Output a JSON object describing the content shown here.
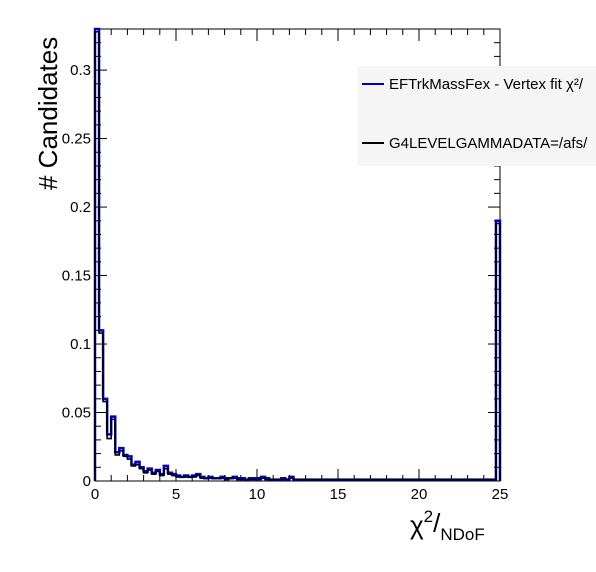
{
  "chart_data": {
    "type": "line",
    "style": "step-histogram",
    "xlabel": {
      "main": "χ",
      "sup": "2",
      "slash": "/",
      "sub": "NDoF"
    },
    "ylabel": "# Candidates",
    "xlim": [
      0,
      25
    ],
    "ylim": [
      0,
      0.33
    ],
    "x_ticks": [
      "0",
      "5",
      "10",
      "15",
      "20",
      "25"
    ],
    "y_ticks": [
      "0",
      "0.05",
      "0.1",
      "0.15",
      "0.2",
      "0.25",
      "0.3"
    ],
    "bin_width": 0.25,
    "grid": false,
    "legend_position": "top-right",
    "series": [
      {
        "name": "EFTrkMassFex - Vertex fit χ²/",
        "color": "#0000cc",
        "values": [
          0.33,
          0.11,
          0.06,
          0.034,
          0.047,
          0.021,
          0.024,
          0.019,
          0.018,
          0.012,
          0.014,
          0.01,
          0.007,
          0.009,
          0.006,
          0.008,
          0.005,
          0.011,
          0.006,
          0.005,
          0.004,
          0.003,
          0.004,
          0.003,
          0.004,
          0.005,
          0.003,
          0.002,
          0.003,
          0.002,
          0.002,
          0.003,
          0.002,
          0.002,
          0.003,
          0.002,
          0.002,
          0.001,
          0.002,
          0.002,
          0.002,
          0.003,
          0.002,
          0.001,
          0.001,
          0.001,
          0.002,
          0.001,
          0.003,
          0.001,
          0.001,
          0.001,
          0.001,
          0.001,
          0.001,
          0.001,
          0.001,
          0.001,
          0.001,
          0.001,
          0.001,
          0.001,
          0.001,
          0.001,
          0.001,
          0.001,
          0.001,
          0.001,
          0.001,
          0.001,
          0.001,
          0.001,
          0.001,
          0.001,
          0.001,
          0.001,
          0.001,
          0.001,
          0.001,
          0.001,
          0.001,
          0.001,
          0.001,
          0.001,
          0.001,
          0.001,
          0.001,
          0.001,
          0.001,
          0.001,
          0.001,
          0.001,
          0.001,
          0.001,
          0.001,
          0.001,
          0.001,
          0.001,
          0.001,
          0.19
        ]
      },
      {
        "name": "G4LEVELGAMMADATA=/afs/",
        "color": "#000000",
        "values": [
          0.328,
          0.108,
          0.058,
          0.031,
          0.045,
          0.019,
          0.022,
          0.018,
          0.016,
          0.011,
          0.012,
          0.009,
          0.006,
          0.008,
          0.005,
          0.007,
          0.004,
          0.009,
          0.005,
          0.004,
          0.003,
          0.003,
          0.003,
          0.003,
          0.003,
          0.004,
          0.002,
          0.002,
          0.002,
          0.002,
          0.002,
          0.002,
          0.001,
          0.002,
          0.002,
          0.001,
          0.001,
          0.001,
          0.001,
          0.001,
          0.001,
          0.002,
          0.001,
          0.001,
          0.001,
          0.001,
          0.001,
          0.001,
          0.002,
          0.001,
          0.001,
          0.001,
          0.001,
          0.001,
          0.001,
          0.001,
          0.001,
          0.001,
          0.001,
          0.001,
          0.001,
          0.001,
          0.001,
          0.001,
          0.001,
          0.001,
          0.001,
          0.001,
          0.001,
          0.001,
          0.001,
          0.001,
          0.001,
          0.001,
          0.001,
          0.001,
          0.001,
          0.001,
          0.001,
          0.001,
          0.001,
          0.001,
          0.001,
          0.001,
          0.001,
          0.001,
          0.001,
          0.001,
          0.001,
          0.001,
          0.001,
          0.001,
          0.001,
          0.001,
          0.001,
          0.001,
          0.001,
          0.001,
          0.001,
          0.188
        ]
      }
    ]
  }
}
